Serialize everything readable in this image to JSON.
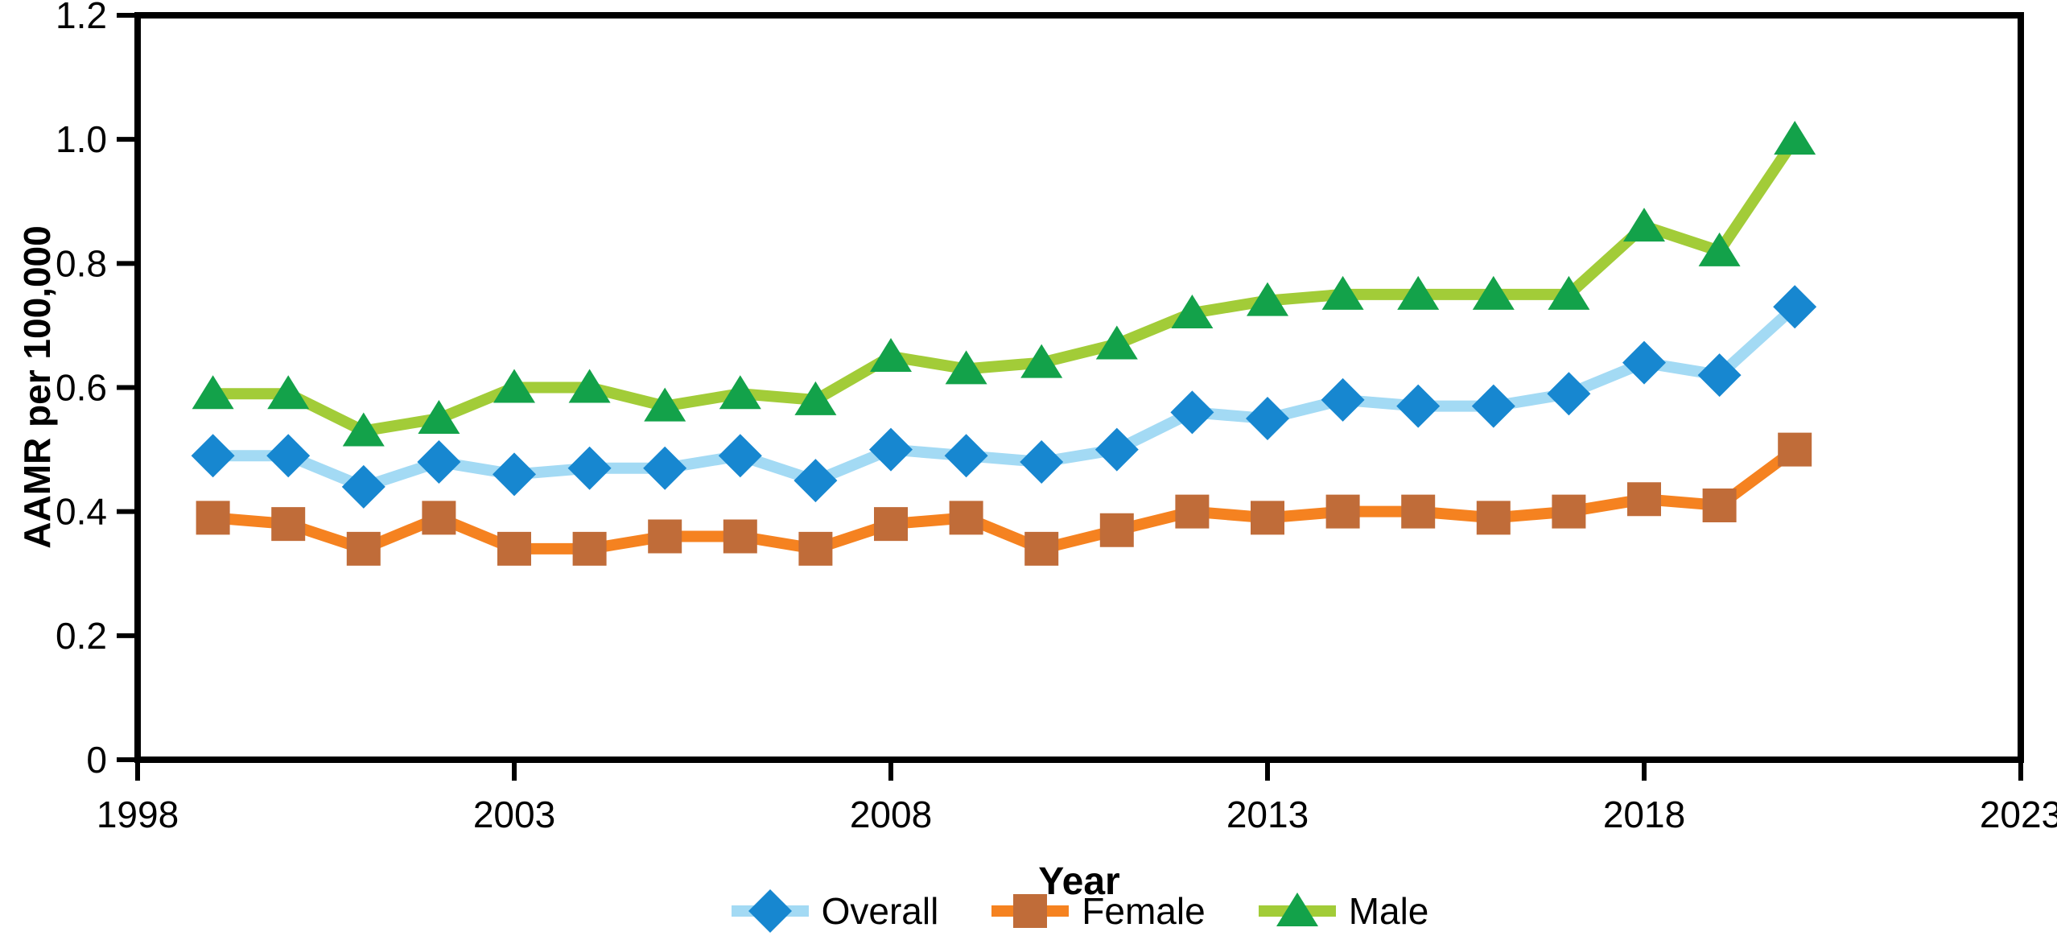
{
  "figure": {
    "background": "#ffffff",
    "axis_color": "#000000",
    "text_color": "#000000"
  },
  "chart_data": {
    "type": "line",
    "title": "",
    "xlabel": "Year",
    "ylabel": "AAMR per 100,000",
    "xlim": [
      1998,
      2023
    ],
    "ylim": [
      0,
      1.2
    ],
    "x_ticks": [
      1998,
      2003,
      2008,
      2013,
      2018,
      2023
    ],
    "y_ticks": [
      "0",
      "0.2",
      "0.4",
      "0.6",
      "0.8",
      "1.0",
      "1.2"
    ],
    "grid": false,
    "legend_position": "bottom-center",
    "x": [
      1999,
      2000,
      2001,
      2002,
      2003,
      2004,
      2005,
      2006,
      2007,
      2008,
      2009,
      2010,
      2011,
      2012,
      2013,
      2014,
      2015,
      2016,
      2017,
      2018,
      2019,
      2020
    ],
    "series": [
      {
        "name": "Overall",
        "marker": "diamond",
        "marker_color": "#1787d0",
        "line_color": "#a3daf4",
        "values": [
          0.49,
          0.49,
          0.44,
          0.48,
          0.46,
          0.47,
          0.47,
          0.49,
          0.45,
          0.5,
          0.49,
          0.48,
          0.5,
          0.56,
          0.55,
          0.58,
          0.57,
          0.57,
          0.59,
          0.64,
          0.62,
          0.73
        ]
      },
      {
        "name": "Female",
        "marker": "square",
        "marker_color": "#c06c39",
        "line_color": "#f58220",
        "values": [
          0.39,
          0.38,
          0.34,
          0.39,
          0.34,
          0.34,
          0.36,
          0.36,
          0.34,
          0.38,
          0.39,
          0.34,
          0.37,
          0.4,
          0.39,
          0.4,
          0.4,
          0.39,
          0.4,
          0.42,
          0.41,
          0.5
        ]
      },
      {
        "name": "Male",
        "marker": "triangle",
        "marker_color": "#13a24a",
        "line_color": "#a2cc38",
        "values": [
          0.59,
          0.59,
          0.53,
          0.55,
          0.6,
          0.6,
          0.57,
          0.59,
          0.58,
          0.65,
          0.63,
          0.64,
          0.67,
          0.72,
          0.74,
          0.75,
          0.75,
          0.75,
          0.75,
          0.86,
          0.82,
          1.0
        ]
      }
    ]
  }
}
